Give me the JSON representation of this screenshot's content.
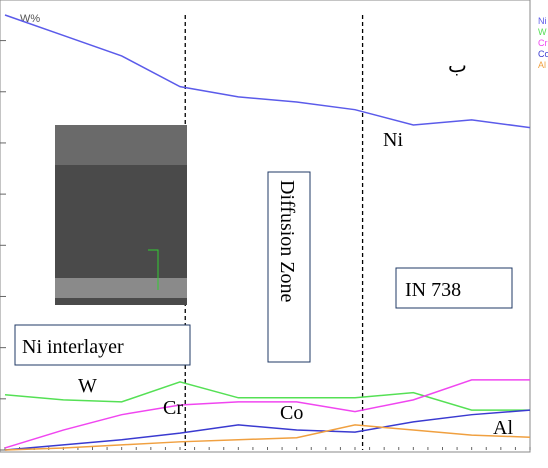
{
  "chart_data": {
    "type": "line",
    "y_label": "W%",
    "x": [
      0,
      10,
      20,
      30,
      40,
      50,
      60,
      70,
      80,
      90
    ],
    "xlim": [
      0,
      90
    ],
    "ylim": [
      0,
      85
    ],
    "yticks": [
      0,
      10,
      20,
      30,
      40,
      50,
      60,
      70,
      80
    ],
    "series": [
      {
        "name": "Ni",
        "color": "#5b5bea",
        "values": [
          85,
          81,
          77,
          71,
          69,
          68,
          66.5,
          63.5,
          64.5,
          63
        ]
      },
      {
        "name": "W",
        "color": "#55e055",
        "values": [
          10.8,
          9.8,
          9.4,
          13.3,
          10.2,
          10.2,
          10.2,
          11.2,
          7.8,
          7.8
        ]
      },
      {
        "name": "Cr",
        "color": "#f046f0",
        "values": [
          0.4,
          3.9,
          6.9,
          8.8,
          9.4,
          9.4,
          7.5,
          9.8,
          13.7,
          13.7
        ]
      },
      {
        "name": "Co",
        "color": "#3a3ad0",
        "values": [
          0,
          1,
          2,
          3.3,
          4.9,
          3.9,
          3.5,
          5.5,
          6.9,
          7.8
        ]
      },
      {
        "name": "Al",
        "color": "#f0a040",
        "values": [
          0,
          0.4,
          1,
          1.6,
          2,
          2.4,
          4.9,
          3.9,
          2.9,
          2.5
        ]
      }
    ],
    "boundaries": [
      30.9,
      61.3
    ],
    "annotations": {
      "panel": "ب",
      "ni": "Ni",
      "zone": "Diffusion Zone",
      "base": "IN 738",
      "interlayer": "Ni interlayer",
      "w": "W",
      "cr": "Cr",
      "co": "Co",
      "al": "Al"
    }
  }
}
